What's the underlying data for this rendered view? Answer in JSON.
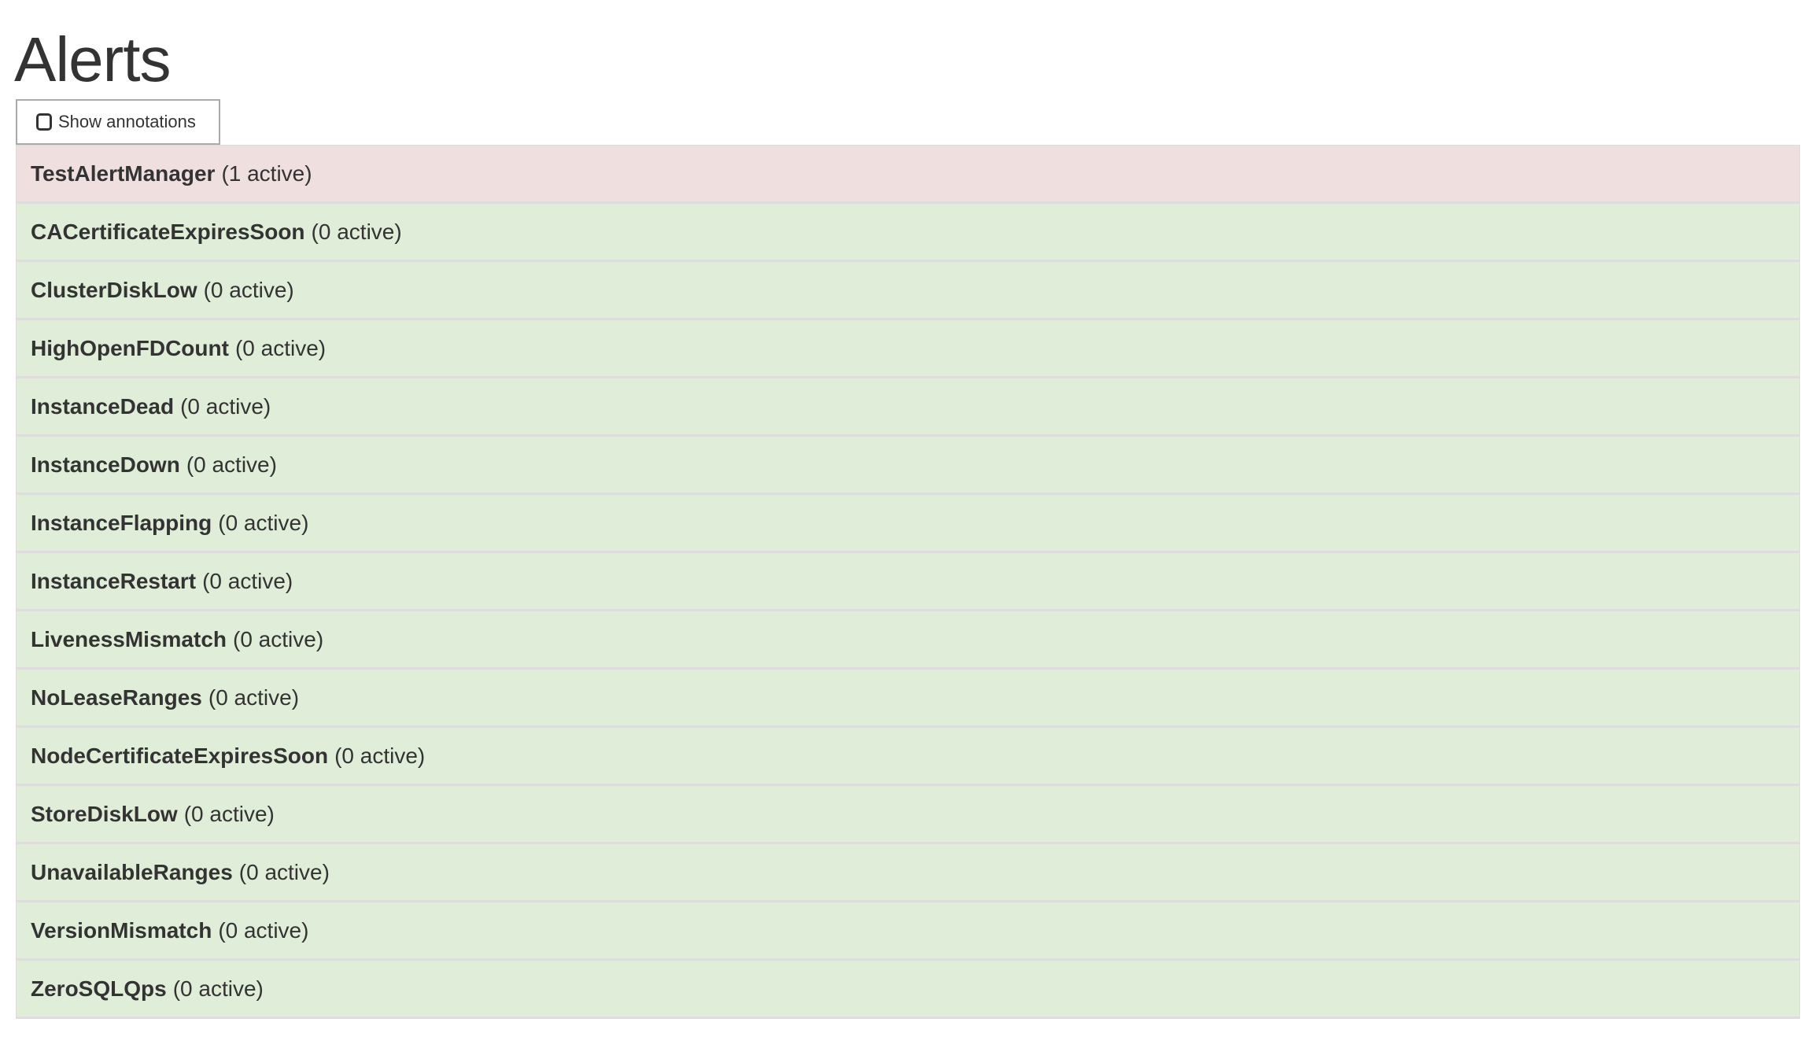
{
  "page": {
    "title": "Alerts"
  },
  "toolbar": {
    "show_annotations_label": "Show annotations",
    "show_annotations_checked": false
  },
  "colors": {
    "firing": "#f0dfdf",
    "inactive": "#e0eed9",
    "border": "#dddddd",
    "text": "#333333"
  },
  "alerts": [
    {
      "name": "TestAlertManager",
      "count": "(1 active)",
      "state": "firing"
    },
    {
      "name": "CACertificateExpiresSoon",
      "count": "(0 active)",
      "state": "inactive"
    },
    {
      "name": "ClusterDiskLow",
      "count": "(0 active)",
      "state": "inactive"
    },
    {
      "name": "HighOpenFDCount",
      "count": "(0 active)",
      "state": "inactive"
    },
    {
      "name": "InstanceDead",
      "count": "(0 active)",
      "state": "inactive"
    },
    {
      "name": "InstanceDown",
      "count": "(0 active)",
      "state": "inactive"
    },
    {
      "name": "InstanceFlapping",
      "count": "(0 active)",
      "state": "inactive"
    },
    {
      "name": "InstanceRestart",
      "count": "(0 active)",
      "state": "inactive"
    },
    {
      "name": "LivenessMismatch",
      "count": "(0 active)",
      "state": "inactive"
    },
    {
      "name": "NoLeaseRanges",
      "count": "(0 active)",
      "state": "inactive"
    },
    {
      "name": "NodeCertificateExpiresSoon",
      "count": "(0 active)",
      "state": "inactive"
    },
    {
      "name": "StoreDiskLow",
      "count": "(0 active)",
      "state": "inactive"
    },
    {
      "name": "UnavailableRanges",
      "count": "(0 active)",
      "state": "inactive"
    },
    {
      "name": "VersionMismatch",
      "count": "(0 active)",
      "state": "inactive"
    },
    {
      "name": "ZeroSQLQps",
      "count": "(0 active)",
      "state": "inactive"
    }
  ]
}
